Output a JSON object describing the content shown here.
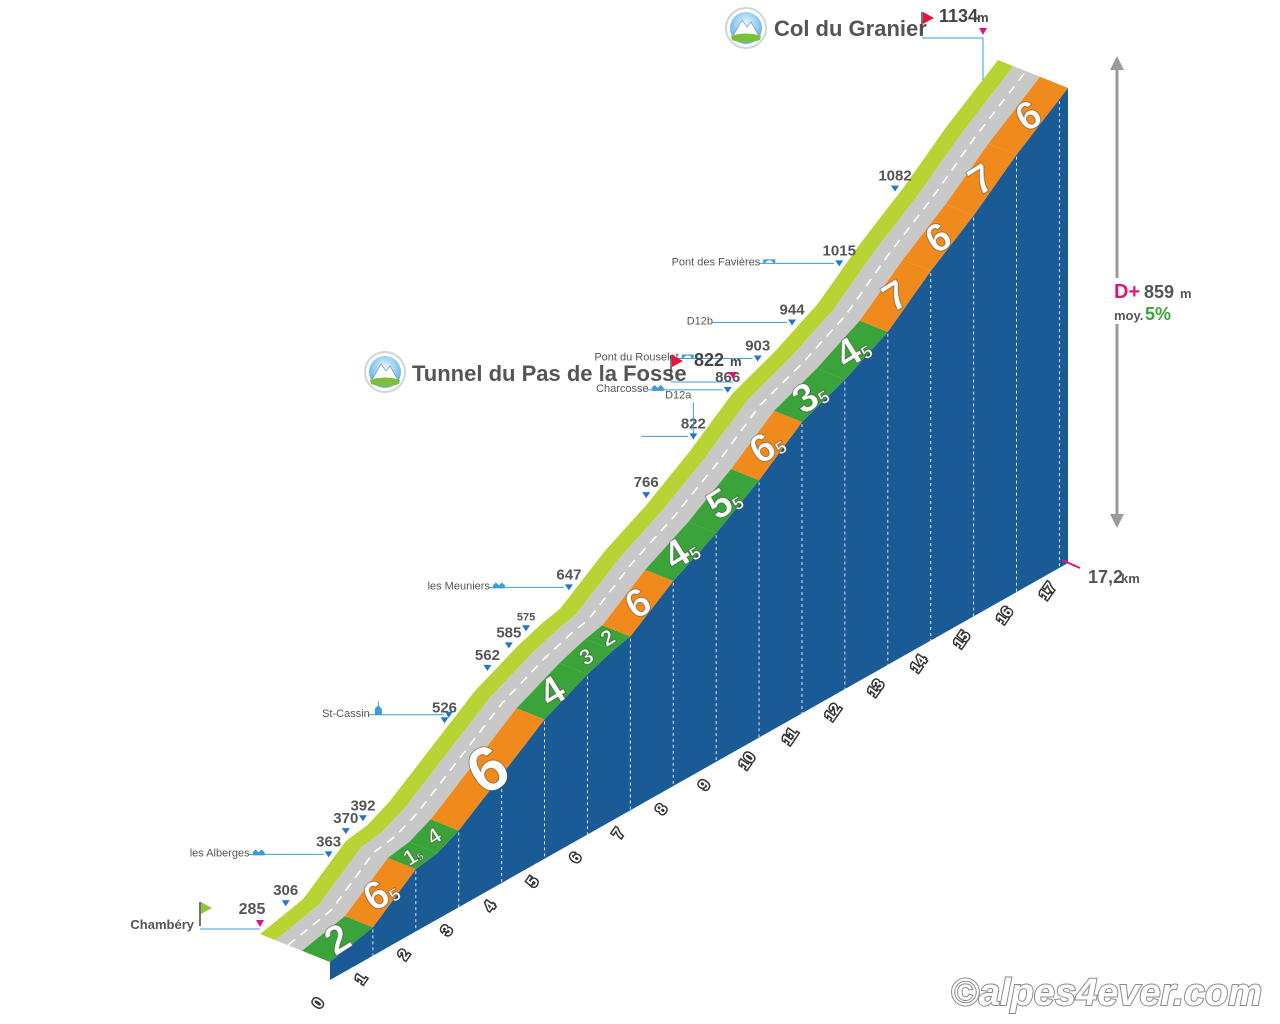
{
  "chart_data": {
    "type": "area",
    "subtype": "3d-elevation-profile",
    "km_ticks": [
      "0",
      "1",
      "2",
      "3",
      "4",
      "5",
      "6",
      "7",
      "8",
      "9",
      "10",
      "11",
      "12",
      "13",
      "14",
      "15",
      "16",
      "17"
    ],
    "total_distance": "17,2",
    "distance_unit": "km",
    "segments": [
      {
        "from_km": 0,
        "to_km": 1,
        "grade": "2",
        "color": "#3aa33a"
      },
      {
        "from_km": 1,
        "to_km": 2,
        "grade": "6,5",
        "color": "#f08a1c"
      },
      {
        "from_km": 2,
        "to_km": 2.5,
        "grade": "1,5",
        "color": "#3aa33a"
      },
      {
        "from_km": 2.5,
        "to_km": 3,
        "grade": "4",
        "color": "#3aa33a"
      },
      {
        "from_km": 3,
        "to_km": 5,
        "grade": "6",
        "color": "#f08a1c"
      },
      {
        "from_km": 5,
        "to_km": 6,
        "grade": "4",
        "color": "#3aa33a"
      },
      {
        "from_km": 6,
        "to_km": 6.6,
        "grade": "3",
        "color": "#3aa33a"
      },
      {
        "from_km": 6.6,
        "to_km": 7,
        "grade": "2",
        "color": "#3aa33a"
      },
      {
        "from_km": 7,
        "to_km": 8,
        "grade": "6",
        "color": "#f08a1c"
      },
      {
        "from_km": 8,
        "to_km": 9,
        "grade": "4,5",
        "color": "#3aa33a"
      },
      {
        "from_km": 9,
        "to_km": 10,
        "grade": "5,5",
        "color": "#3aa33a"
      },
      {
        "from_km": 10,
        "to_km": 11,
        "grade": "6,5",
        "color": "#f08a1c"
      },
      {
        "from_km": 11,
        "to_km": 12,
        "grade": "3,5",
        "color": "#3aa33a"
      },
      {
        "from_km": 12,
        "to_km": 13,
        "grade": "4,5",
        "color": "#3aa33a"
      },
      {
        "from_km": 13,
        "to_km": 14,
        "grade": "7",
        "color": "#f08a1c"
      },
      {
        "from_km": 14,
        "to_km": 15,
        "grade": "6",
        "color": "#f08a1c"
      },
      {
        "from_km": 15,
        "to_km": 16,
        "grade": "7",
        "color": "#f08a1c"
      },
      {
        "from_km": 16,
        "to_km": 17.2,
        "grade": "6",
        "color": "#f08a1c"
      }
    ],
    "altitude_markers": [
      {
        "km": 0,
        "alt": "285",
        "label": "Chambéry",
        "kind": "start-flag"
      },
      {
        "km": 0.6,
        "alt": "306",
        "label": "",
        "kind": "plain"
      },
      {
        "km": 1.6,
        "alt": "363",
        "label": "les Alberges",
        "kind": "hamlet"
      },
      {
        "km": 2.0,
        "alt": "370",
        "label": "",
        "kind": "plain"
      },
      {
        "km": 2.4,
        "alt": "392",
        "label": "",
        "kind": "plain"
      },
      {
        "km": 4.3,
        "alt": "526",
        "label": "",
        "kind": "plain"
      },
      {
        "km": 4.4,
        "alt": "",
        "label": "St-Cassin",
        "kind": "church"
      },
      {
        "km": 5.3,
        "alt": "562",
        "label": "",
        "kind": "plain"
      },
      {
        "km": 5.8,
        "alt": "585",
        "label": "",
        "kind": "plain"
      },
      {
        "km": 6.2,
        "alt": "575",
        "label": "",
        "kind": "small"
      },
      {
        "km": 7.2,
        "alt": "647",
        "label": "les Meuniers",
        "kind": "hamlet"
      },
      {
        "km": 9.0,
        "alt": "766",
        "label": "",
        "kind": "plain"
      },
      {
        "km": 10.1,
        "alt": "822",
        "label": "D12a",
        "kind": "pass"
      },
      {
        "km": 10.9,
        "alt": "866",
        "label": "Charcosse",
        "kind": "hamlet"
      },
      {
        "km": 11.6,
        "alt": "903",
        "label": "Pont du Rouselet",
        "kind": "bridge"
      },
      {
        "km": 12.4,
        "alt": "944",
        "label": "D12b",
        "kind": "plain"
      },
      {
        "km": 13.5,
        "alt": "1015",
        "label": "Pont des Favières",
        "kind": "bridge"
      },
      {
        "km": 14.8,
        "alt": "1082",
        "label": "",
        "kind": "plain"
      },
      {
        "km": 17.2,
        "alt": "1134",
        "label": "",
        "kind": "summit"
      }
    ],
    "passes": [
      {
        "name": "Tunnel du Pas de la Fosse",
        "alt": "822",
        "unit": "m"
      },
      {
        "name": "Col du Granier",
        "alt": "1134",
        "unit": "m"
      }
    ],
    "summary": {
      "dplus_label": "D+",
      "dplus_value": "859",
      "dplus_unit": "m",
      "avg_label": "moy.",
      "avg_value": "5%"
    },
    "colors": {
      "side": "#1a5b96",
      "road": "#c8c8c8",
      "verge": "#b7d334",
      "green": "#3aa33a",
      "orange": "#f08a1c",
      "leader": "#3d9bd6",
      "marker": "#1f77c4",
      "summit_flag": "#e8133c",
      "start_flag": "#8dc63f",
      "magenta": "#e0147a"
    }
  },
  "credit": "©alpes4ever.com"
}
